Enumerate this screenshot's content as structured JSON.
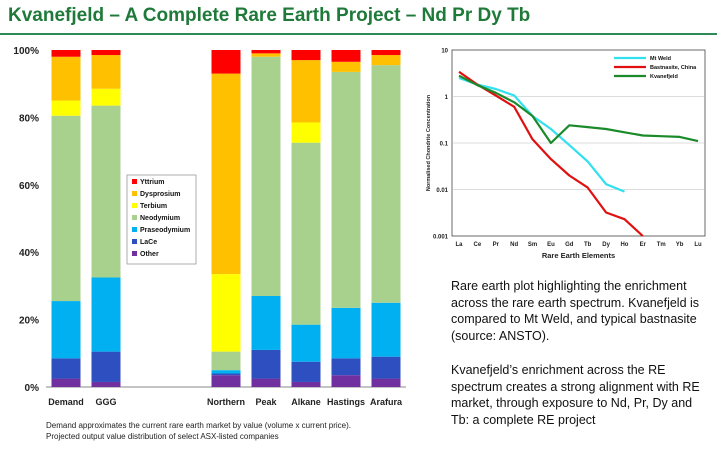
{
  "slide": {
    "title": "Kvanefjeld – A Complete Rare Earth Project – Nd Pr Dy Tb",
    "footnote_line1": "Demand approximates the current rare earth market by value (volume x current price).",
    "footnote_line2": "Projected output value distribution of select ASX-listed companies",
    "paragraph1": "Rare earth plot highlighting the enrichment across the rare earth spectrum. Kvanefjeld is compared to Mt Weld, and typical bastnasite (source: ANSTO).",
    "paragraph2": "Kvanefjeld’s enrichment across the RE spectrum creates a strong alignment with RE market, through exposure to Nd, Pr, Dy and Tb: a complete RE project"
  },
  "chart_data": [
    {
      "type": "bar",
      "stacked": true,
      "percent": true,
      "categories": [
        "Demand",
        "GGG",
        "",
        "",
        "Northern",
        "Peak",
        "Alkane",
        "Hastings",
        "Arafura"
      ],
      "ylim": [
        0,
        100
      ],
      "yticks": [
        "0%",
        "20%",
        "40%",
        "60%",
        "80%",
        "100%"
      ],
      "legend_position": "inside-left-middle",
      "series": [
        {
          "name": "Other",
          "color": "#7030a0",
          "values": [
            2.5,
            1.5,
            0,
            0,
            3.5,
            2.5,
            1.5,
            3.5,
            2.5
          ]
        },
        {
          "name": "LaCe",
          "color": "#2e4fbf",
          "values": [
            6,
            9,
            0,
            0,
            0.5,
            8.5,
            6,
            5,
            6.5
          ]
        },
        {
          "name": "Praseodymium",
          "color": "#00b0f0",
          "values": [
            17,
            22,
            0,
            0,
            1,
            16,
            11,
            15,
            16
          ]
        },
        {
          "name": "Neodymium",
          "color": "#a9d18e",
          "values": [
            55,
            51,
            0,
            0,
            5.5,
            71,
            54,
            70,
            70.5
          ]
        },
        {
          "name": "Terbium",
          "color": "#ffff00",
          "values": [
            4.5,
            5,
            0,
            0,
            23,
            0,
            6,
            0,
            0
          ]
        },
        {
          "name": "Dysprosium",
          "color": "#ffc000",
          "values": [
            13,
            10,
            0,
            0,
            59.5,
            1,
            18.5,
            3,
            3
          ]
        },
        {
          "name": "Yttrium",
          "color": "#ff0000",
          "values": [
            2,
            1.5,
            0,
            0,
            7,
            1,
            3,
            3.5,
            1.5
          ]
        }
      ]
    },
    {
      "type": "line",
      "log_y": true,
      "ylabel": "Normalised Chondrite Concentration",
      "xlabel": "Rare Earth Elements",
      "ylim": [
        0.001,
        10
      ],
      "yticks": [
        "0.001",
        "0.01",
        "0.1",
        "1",
        "10"
      ],
      "categories": [
        "La",
        "Ce",
        "Pr",
        "Nd",
        "Sm",
        "Eu",
        "Gd",
        "Tb",
        "Dy",
        "Ho",
        "Er",
        "Tm",
        "Yb",
        "Lu"
      ],
      "legend_position": "top-right",
      "series": [
        {
          "name": "Mt Weld",
          "color": "#33e0f0",
          "values": [
            2.5,
            1.8,
            1.45,
            1.05,
            0.38,
            0.2,
            0.09,
            0.04,
            0.013,
            0.009,
            null,
            null,
            null,
            null
          ]
        },
        {
          "name": "Bastnasite, China",
          "color": "#e01010",
          "values": [
            3.4,
            1.8,
            1.05,
            0.6,
            0.12,
            0.045,
            0.02,
            0.011,
            0.0032,
            0.0023,
            0.001,
            null,
            null,
            null
          ]
        },
        {
          "name": "Kvanefjeld",
          "color": "#1a8a2a",
          "values": [
            2.8,
            1.75,
            1.2,
            0.75,
            0.38,
            0.1,
            0.24,
            0.22,
            0.2,
            0.17,
            0.145,
            0.14,
            0.135,
            0.11
          ]
        }
      ]
    }
  ]
}
